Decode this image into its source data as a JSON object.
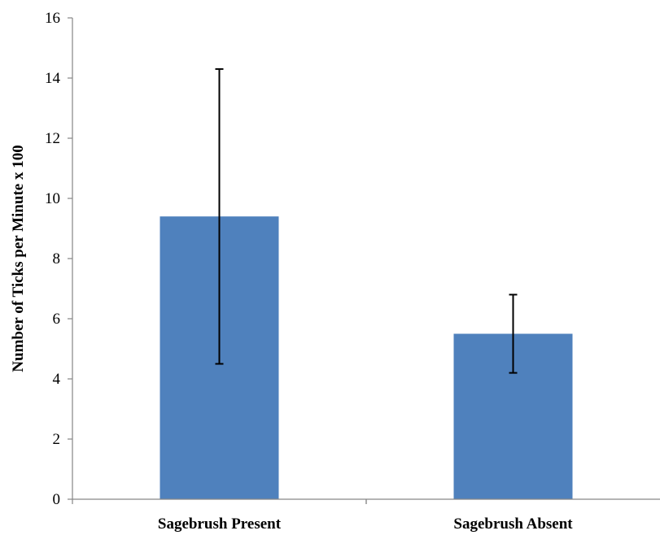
{
  "chart_data": {
    "type": "bar",
    "title": "",
    "xlabel": "",
    "ylabel": "Number of Ticks per Minute x 100",
    "ylim": [
      0,
      16
    ],
    "yticks": [
      0,
      2,
      4,
      6,
      8,
      10,
      12,
      14,
      16
    ],
    "ytick_labels": [
      "0",
      "2",
      "4",
      "6",
      "8",
      "10",
      "12",
      "14",
      "16"
    ],
    "categories": [
      "Sagebrush Present",
      "Sagebrush Absent"
    ],
    "values": [
      9.4,
      5.5
    ],
    "error_bars": [
      {
        "low": 4.5,
        "high": 14.3
      },
      {
        "low": 4.2,
        "high": 6.8
      }
    ],
    "grid": false,
    "legend": "none",
    "colors": {
      "bar": "#4f81bd",
      "axis": "#868686",
      "error_bar": "#000000"
    }
  }
}
